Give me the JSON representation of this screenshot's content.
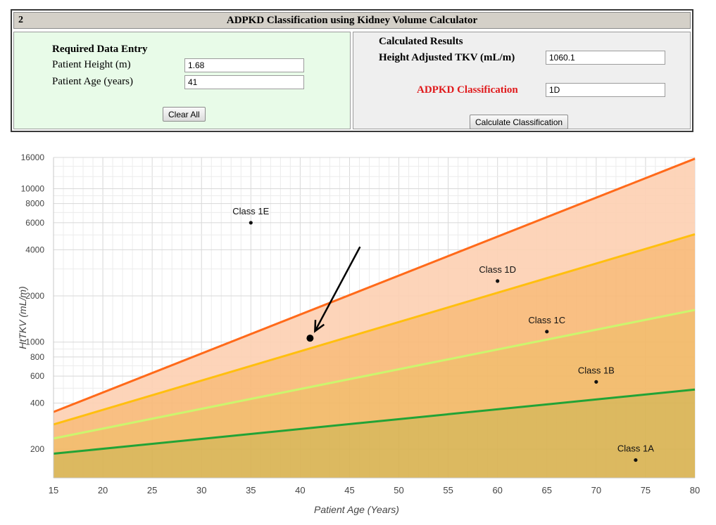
{
  "calculator": {
    "number": "2",
    "title": "ADPKD Classification using Kidney Volume Calculator",
    "entry": {
      "heading": "Required Data Entry",
      "height_label": "Patient Height (m)",
      "height_value": "1.68",
      "age_label": "Patient Age (years)",
      "age_value": "41",
      "clear_button": "Clear All"
    },
    "results": {
      "heading": "Calculated Results",
      "tkv_label": "Height Adjusted TKV (mL/m)",
      "tkv_value": "1060.1",
      "class_label": "ADPKD Classification",
      "class_value": "1D",
      "calc_button": "Calculate Classification"
    }
  },
  "chart_data": {
    "type": "line",
    "xlabel": "Patient Age (Years)",
    "ylabel": "HtTKV (mL/m)",
    "xlim": [
      15,
      80
    ],
    "ylim": [
      130,
      16000
    ],
    "y_scale": "log",
    "grid": true,
    "x_ticks": [
      15,
      20,
      25,
      30,
      35,
      40,
      45,
      50,
      55,
      60,
      65,
      70,
      75,
      80
    ],
    "y_ticks": [
      200,
      400,
      600,
      800,
      1000,
      2000,
      4000,
      6000,
      8000,
      10000,
      16000
    ],
    "series": [
      {
        "color": "#ff6a1a",
        "x": [
          15,
          80
        ],
        "y": [
          350,
          15700
        ]
      },
      {
        "color": "#ffbf0f",
        "x": [
          15,
          80
        ],
        "y": [
          290,
          5050
        ]
      },
      {
        "color": "#ccf56e",
        "x": [
          15,
          80
        ],
        "y": [
          235,
          1620
        ]
      },
      {
        "color": "#22a336",
        "x": [
          15,
          80
        ],
        "y": [
          187,
          490
        ]
      }
    ],
    "band_colors": [
      "#d9b352",
      "#f2b866",
      "#f8ba78",
      "#fdd0b3"
    ],
    "class_labels": [
      {
        "label": "Class 1E",
        "x": 35,
        "y": 6000
      },
      {
        "label": "Class 1D",
        "x": 60,
        "y": 2500
      },
      {
        "label": "Class 1C",
        "x": 65,
        "y": 1170
      },
      {
        "label": "Class 1B",
        "x": 70,
        "y": 550
      },
      {
        "label": "Class 1A",
        "x": 74,
        "y": 170
      }
    ],
    "patient_point": {
      "x": 41,
      "y": 1060.1
    }
  }
}
